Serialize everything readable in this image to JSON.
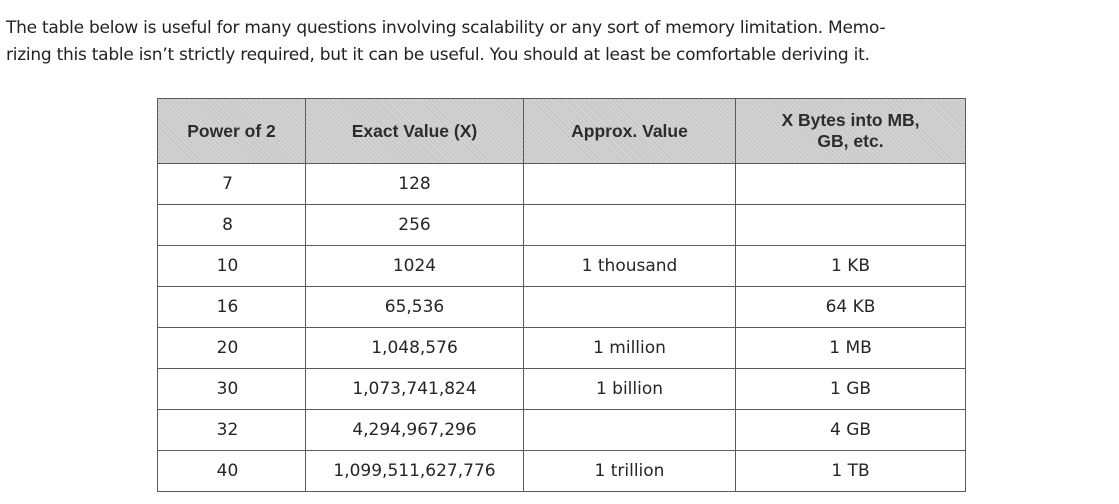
{
  "intro": {
    "line1": "The table below is useful for many questions involving scalability or any sort of memory limitation. Memo-",
    "line2": "rizing this table isn’t strictly required, but it can be useful. You should at least be comfortable deriving it."
  },
  "table": {
    "headers": {
      "power": "Power of 2",
      "exact": "Exact Value (X)",
      "approx": "Approx. Value",
      "bytes_line1": "X Bytes into MB,",
      "bytes_line2": "GB, etc."
    },
    "rows": [
      {
        "power": "7",
        "exact": "128",
        "approx": "",
        "bytes": ""
      },
      {
        "power": "8",
        "exact": "256",
        "approx": "",
        "bytes": ""
      },
      {
        "power": "10",
        "exact": "1024",
        "approx": "1 thousand",
        "bytes": "1 KB"
      },
      {
        "power": "16",
        "exact": "65,536",
        "approx": "",
        "bytes": "64 KB"
      },
      {
        "power": "20",
        "exact": "1,048,576",
        "approx": "1 million",
        "bytes": "1 MB"
      },
      {
        "power": "30",
        "exact": "1,073,741,824",
        "approx": "1 billion",
        "bytes": "1 GB"
      },
      {
        "power": "32",
        "exact": "4,294,967,296",
        "approx": "",
        "bytes": "4 GB"
      },
      {
        "power": "40",
        "exact": "1,099,511,627,776",
        "approx": "1 trillion",
        "bytes": "1 TB"
      }
    ]
  }
}
